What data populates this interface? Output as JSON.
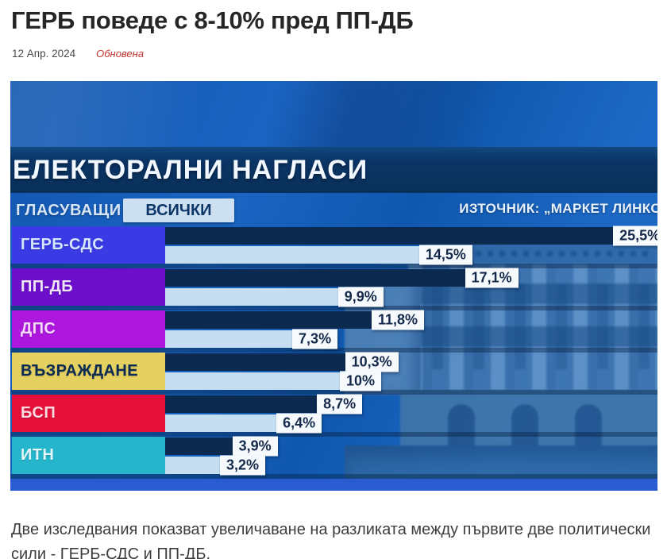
{
  "article": {
    "title": "ГЕРБ поведе с 8-10% пред ПП-ДБ",
    "date": "12 Апр. 2024",
    "updated_label": "Обновена",
    "caption": "Две изследвания показват увеличаване на разликата между първите две политически сили - ГЕРБ-СДС и ПП-ДБ."
  },
  "chart_data": {
    "type": "bar",
    "orientation": "horizontal",
    "title": "ЕЛЕКТОРАЛНИ НАГЛАСИ",
    "filter_label": "ГЛАСУВАЩИ",
    "filter_value": "ВСИЧКИ",
    "source": "ИЗТОЧНИК: „МАРКЕТ ЛИНКС",
    "categories": [
      "ГЕРБ-СДС",
      "ПП-ДБ",
      "ДПС",
      "ВЪЗРАЖДАНЕ",
      "БСП",
      "ИТН"
    ],
    "category_colors": [
      "#3a3be4",
      "#6d0ecb",
      "#ad17dd",
      "#e5d160",
      "#e51039",
      "#25b6cb"
    ],
    "category_text_colors": [
      "#d7e6ff",
      "#f0e4fb",
      "#f6d7fb",
      "#0c2b52",
      "#fbd9de",
      "#e4f6fa"
    ],
    "series": [
      {
        "name": "poll-dark-bar",
        "color": "#0c2a50",
        "values": [
          25.5,
          17.1,
          11.8,
          10.3,
          8.7,
          3.9
        ],
        "labels": [
          "25,5%",
          "17,1%",
          "11,8%",
          "10,3%",
          "8,7%",
          "3,9%"
        ]
      },
      {
        "name": "poll-light-bar",
        "color": "#c6def2",
        "values": [
          14.5,
          9.9,
          7.3,
          10.0,
          6.4,
          3.2
        ],
        "labels": [
          "14,5%",
          "9,9%",
          "7,3%",
          "10%",
          "6,4%",
          "3,2%"
        ]
      }
    ],
    "xlim": [
      0,
      26
    ],
    "legend_position": "none",
    "grid": false
  }
}
